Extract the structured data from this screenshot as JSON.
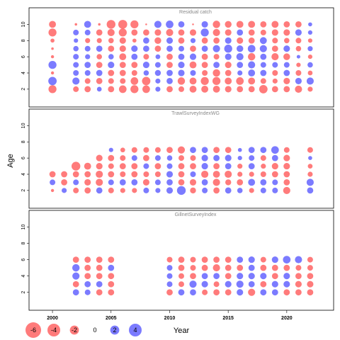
{
  "chart_data": {
    "type": "bubble",
    "xlabel": "Year",
    "ylabel": "Age",
    "xlim": [
      1998,
      2024
    ],
    "xticks": [
      2000,
      2005,
      2010,
      2015,
      2020
    ],
    "ylim": [
      0.5,
      11
    ],
    "yticks": [
      2,
      4,
      6,
      8,
      10
    ],
    "colors": {
      "negative": "#ff5a5a",
      "positive": "#5a5aff",
      "opacity": 0.8
    },
    "max_value": 4,
    "legend": [
      {
        "label": "-6",
        "value": -6
      },
      {
        "label": "-4",
        "value": -4
      },
      {
        "label": "-2",
        "value": -2
      },
      {
        "label": "0",
        "value": 0
      },
      {
        "label": "2",
        "value": 2
      },
      {
        "label": "4",
        "value": 4
      }
    ],
    "panels": [
      {
        "title": "Residual catch",
        "years": [
          2000,
          2002,
          2003,
          2004,
          2005,
          2006,
          2007,
          2008,
          2009,
          2010,
          2011,
          2012,
          2013,
          2014,
          2015,
          2016,
          2017,
          2018,
          2019,
          2020,
          2021,
          2022
        ],
        "ages": [
          2,
          3,
          4,
          5,
          6,
          7,
          8,
          9,
          10
        ],
        "values": [
          [
            -2.0,
            -1.0,
            -1.2,
            0.7,
            -1.2,
            -1.8,
            -2.0,
            -1.8,
            0.8,
            -1.2,
            -1.0,
            -1.5,
            -1.5,
            -1.5,
            -1.3,
            -1.2,
            -1.2,
            -2.2,
            -1.2,
            -1.2,
            -1.6,
            -0.8
          ],
          [
            2.2,
            1.6,
            -1.0,
            -1.2,
            -1.0,
            -1.0,
            -1.8,
            -2.2,
            0.8,
            1.2,
            -1.7,
            -1.5,
            -2.0,
            -2.0,
            -1.5,
            -1.8,
            -1.5,
            -1.0,
            -0.8,
            -1.3,
            1.3,
            1.6
          ],
          [
            -0.3,
            1.0,
            1.0,
            1.2,
            -1.2,
            -1.2,
            -1.0,
            0.9,
            1.1,
            1.2,
            1.3,
            1.0,
            -1.0,
            -1.7,
            -1.2,
            0.8,
            1.5,
            1.2,
            -1.0,
            1.2,
            -1.0,
            -0.7
          ],
          [
            2.0,
            1.0,
            1.2,
            -1.2,
            1.3,
            -1.2,
            -1.2,
            1.3,
            1.0,
            -1.2,
            1.3,
            -1.5,
            -1.2,
            1.2,
            -1.3,
            1.2,
            1.6,
            1.0,
            1.0,
            1.0,
            -0.6,
            0.9
          ],
          [
            -0.3,
            1.0,
            0.8,
            -0.9,
            0.9,
            -1.5,
            1.2,
            -1.0,
            0.7,
            -1.2,
            1.2,
            1.3,
            -1.2,
            -1.0,
            1.3,
            1.6,
            -1.7,
            1.2,
            -1.6,
            -1.4,
            0.4,
            -0.6
          ],
          [
            -0.2,
            0.9,
            1.0,
            1.2,
            -1.2,
            -1.3,
            1.3,
            1.2,
            -1.2,
            1.2,
            1.0,
            -1.2,
            1.2,
            1.6,
            2.0,
            1.4,
            1.8,
            1.6,
            -1.2,
            1.3,
            -0.9,
            0.8
          ],
          [
            -0.5,
            0.6,
            -0.8,
            -0.8,
            -0.9,
            -1.3,
            -0.5,
            1.2,
            -1.4,
            1.3,
            -1.2,
            0.8,
            -1.2,
            -1.2,
            1.3,
            -1.3,
            -1.2,
            1.5,
            -1.0,
            -0.9,
            -1.0,
            -0.6
          ],
          [
            -2.0,
            1.0,
            1.0,
            -1.2,
            -1.6,
            -2.0,
            -1.2,
            -1.2,
            -1.3,
            -1.6,
            -1.2,
            -1.3,
            2.0,
            -1.6,
            -1.3,
            1.2,
            -1.2,
            -1.0,
            -1.3,
            -1.3,
            1.3,
            0.6
          ],
          [
            -1.5,
            -0.2,
            1.5,
            -0.2,
            -2.4,
            -2.5,
            -2.0,
            -0.1,
            1.6,
            1.8,
            1.2,
            -0.1,
            1.3,
            -1.7,
            -1.4,
            -1.5,
            -1.5,
            -1.2,
            -1.5,
            -1.2,
            -1.2,
            0.5
          ]
        ]
      },
      {
        "title": "TrawlSurveyIndexWG",
        "years": [
          2000,
          2001,
          2002,
          2003,
          2004,
          2005,
          2006,
          2007,
          2008,
          2009,
          2010,
          2011,
          2012,
          2013,
          2014,
          2015,
          2016,
          2017,
          2018,
          2019,
          2020,
          2022
        ],
        "ages": [
          2,
          3,
          4,
          5,
          6,
          7
        ],
        "values": [
          [
            -0.3,
            0.8,
            -1.0,
            -1.2,
            1.2,
            -1.0,
            -0.8,
            -0.8,
            1.0,
            0.8,
            1.3,
            2.4,
            -1.1,
            1.0,
            -1.2,
            1.2,
            0.9,
            -0.8,
            1.0,
            1.0,
            -1.6,
            1.2
          ],
          [
            1.0,
            -1.2,
            1.0,
            -1.3,
            -1.6,
            1.0,
            1.2,
            1.2,
            -1.3,
            1.0,
            1.2,
            -1.2,
            -1.3,
            1.2,
            -1.6,
            -1.1,
            -1.2,
            1.5,
            1.2,
            1.0,
            -1.2,
            1.6
          ],
          [
            -1.2,
            -1.2,
            -1.2,
            -1.2,
            -1.6,
            -1.2,
            -1.0,
            -1.2,
            -1.0,
            -1.0,
            1.3,
            -1.2,
            1.0,
            -1.6,
            -1.5,
            -1.6,
            -0.8,
            -0.8,
            -1.0,
            -1.2,
            -1.2,
            -0.8
          ],
          [
            0.0,
            0.0,
            -2.4,
            -1.5,
            -1.3,
            -1.0,
            -1.2,
            -1.2,
            1.0,
            -1.2,
            1.0,
            -1.2,
            -1.2,
            1.3,
            -1.2,
            1.2,
            -0.8,
            1.2,
            -0.8,
            -1.3,
            -1.3,
            -0.7
          ],
          [
            0.0,
            0.0,
            0.0,
            0.0,
            -1.3,
            -1.2,
            -1.0,
            1.0,
            -1.2,
            1.0,
            0.9,
            -1.0,
            -1.0,
            1.3,
            1.2,
            1.3,
            0.6,
            1.0,
            -1.0,
            1.2,
            -1.3,
            0.5
          ],
          [
            0.0,
            0.0,
            0.0,
            0.0,
            0.0,
            0.6,
            -0.7,
            -1.0,
            -1.0,
            -1.0,
            -1.2,
            -1.6,
            1.2,
            1.2,
            -1.2,
            -1.2,
            0.5,
            1.2,
            1.2,
            1.8,
            -1.0,
            -1.0
          ]
        ]
      },
      {
        "title": "GillnetSurveyIndex",
        "years": [
          2002,
          2003,
          2004,
          2005,
          2010,
          2011,
          2012,
          2013,
          2014,
          2015,
          2016,
          2017,
          2018,
          2019,
          2020,
          2021,
          2022
        ],
        "ages": [
          2,
          3,
          4,
          5,
          6
        ],
        "values": [
          [
            1.2,
            1.0,
            -1.2,
            -1.2,
            -1.2,
            1.2,
            1.2,
            -1.0,
            -1.2,
            -1.2,
            1.3,
            -1.6,
            1.2,
            1.2,
            -1.2,
            -1.2,
            -1.2
          ],
          [
            -1.2,
            1.2,
            1.2,
            -1.2,
            1.0,
            -1.0,
            1.6,
            1.3,
            -1.0,
            1.3,
            1.6,
            1.2,
            -1.2,
            1.3,
            1.3,
            -1.3,
            -1.3
          ],
          [
            1.6,
            -1.2,
            -1.2,
            -1.2,
            1.0,
            -1.0,
            -1.2,
            1.2,
            1.2,
            -1.2,
            1.3,
            1.3,
            1.3,
            -1.2,
            1.3,
            -1.2,
            -1.2
          ],
          [
            1.7,
            -1.2,
            -1.2,
            1.2,
            1.0,
            -1.2,
            -1.0,
            -1.2,
            -1.6,
            -1.2,
            -1.2,
            1.2,
            -1.2,
            -1.2,
            -1.2,
            -1.0,
            -1.0
          ],
          [
            -1.2,
            -1.2,
            -1.2,
            -1.2,
            -1.0,
            -1.2,
            -1.0,
            -1.2,
            -1.2,
            -1.2,
            1.2,
            1.3,
            -1.0,
            1.3,
            1.8,
            1.6,
            -1.0
          ]
        ]
      }
    ]
  }
}
